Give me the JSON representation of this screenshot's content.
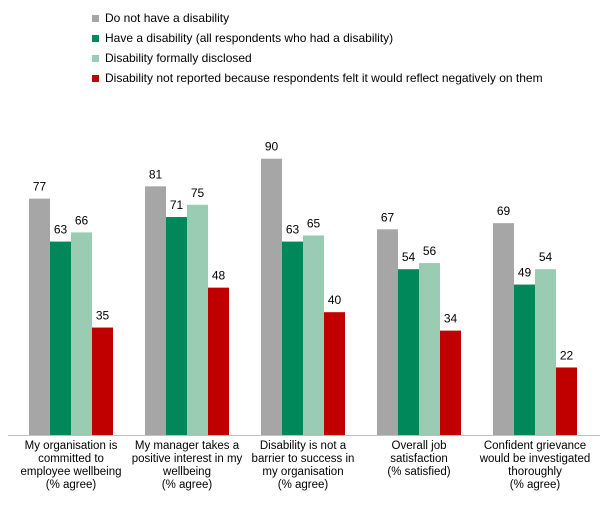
{
  "chart_data": {
    "type": "bar",
    "title": "",
    "xlabel": "",
    "ylabel": "",
    "ylim": [
      0,
      100
    ],
    "grid": false,
    "legend_position": "top",
    "categories": [
      "My organisation is committed to employee wellbeing (% agree)",
      "My manager takes a positive interest in my wellbeing (% agree)",
      "Disability is not a barrier to success in my organisation (% agree)",
      "Overall job satisfaction (% satisfied)",
      "Confident grievance would be investigated thoroughly (% agree)"
    ],
    "category_lines": [
      [
        "My organisation is",
        "committed to",
        "employee wellbeing",
        "(% agree)"
      ],
      [
        "My manager takes a",
        "positive interest in my",
        "wellbeing",
        "(% agree)"
      ],
      [
        "Disability is not a",
        "barrier to success in",
        "my organisation",
        "(% agree)"
      ],
      [
        "Overall job",
        "satisfaction",
        "(% satisfied)"
      ],
      [
        "Confident grievance",
        "would be investigated",
        "thoroughly",
        "(% agree)"
      ]
    ],
    "series": [
      {
        "name": "Do not have a disability",
        "color": "#a6a6a6",
        "values": [
          77,
          81,
          90,
          67,
          69
        ]
      },
      {
        "name": "Have a disability (all respondents who had a disability)",
        "color": "#00875a",
        "values": [
          63,
          71,
          63,
          54,
          49
        ]
      },
      {
        "name": "Disability formally disclosed",
        "color": "#99ccb3",
        "values": [
          66,
          75,
          65,
          56,
          54
        ]
      },
      {
        "name": "Disability not reported because respondents felt it would reflect negatively on them",
        "color": "#c00000",
        "values": [
          35,
          48,
          40,
          34,
          22
        ]
      }
    ]
  }
}
